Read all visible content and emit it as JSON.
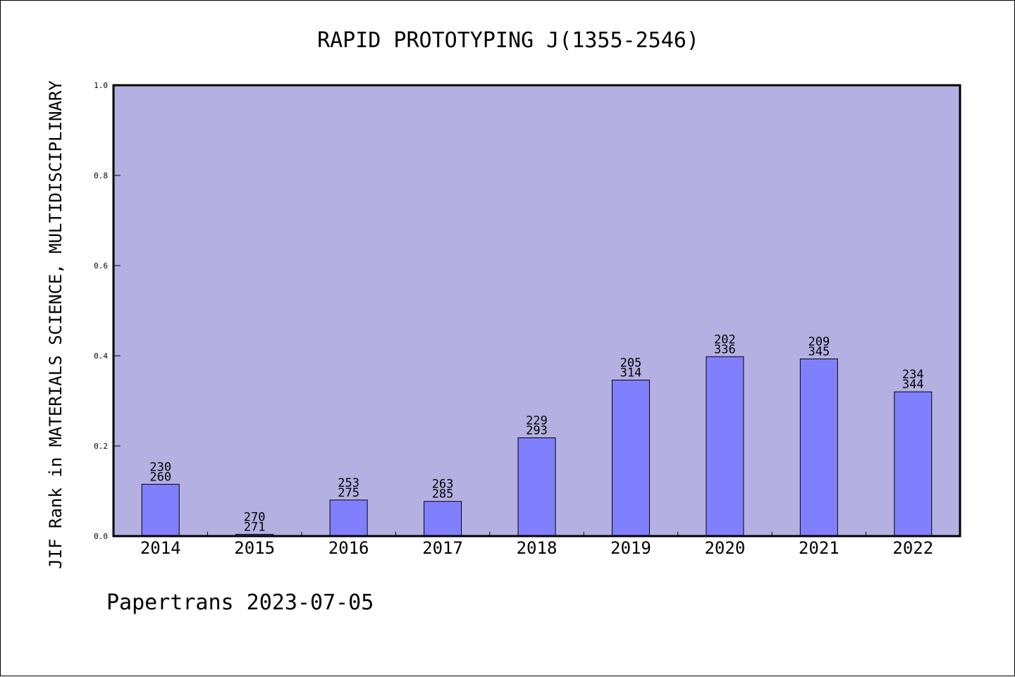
{
  "chart_data": {
    "type": "bar",
    "title": "RAPID PROTOTYPING J(1355-2546)",
    "ylabel": "JIF Rank in MATERIALS SCIENCE, MULTIDISCIPLINARY",
    "xlabel": "",
    "ylim": [
      0.0,
      1.0
    ],
    "yticks": [
      "0.0",
      "0.2",
      "0.4",
      "0.6",
      "0.8",
      "1.0"
    ],
    "categories": [
      "2014",
      "2015",
      "2016",
      "2017",
      "2018",
      "2019",
      "2020",
      "2021",
      "2022"
    ],
    "values": [
      0.115,
      0.004,
      0.08,
      0.077,
      0.218,
      0.346,
      0.398,
      0.393,
      0.32
    ],
    "labels_top": [
      "230",
      "270",
      "253",
      "263",
      "229",
      "205",
      "202",
      "209",
      "234"
    ],
    "labels_bottom": [
      "260",
      "271",
      "275",
      "285",
      "293",
      "314",
      "336",
      "345",
      "344"
    ],
    "grid": false,
    "colors": {
      "plot_background": "#b5b0e2",
      "bar_fill": "#8080ff",
      "bar_stroke": "#000000"
    }
  },
  "footer": "Papertrans 2023-07-05"
}
